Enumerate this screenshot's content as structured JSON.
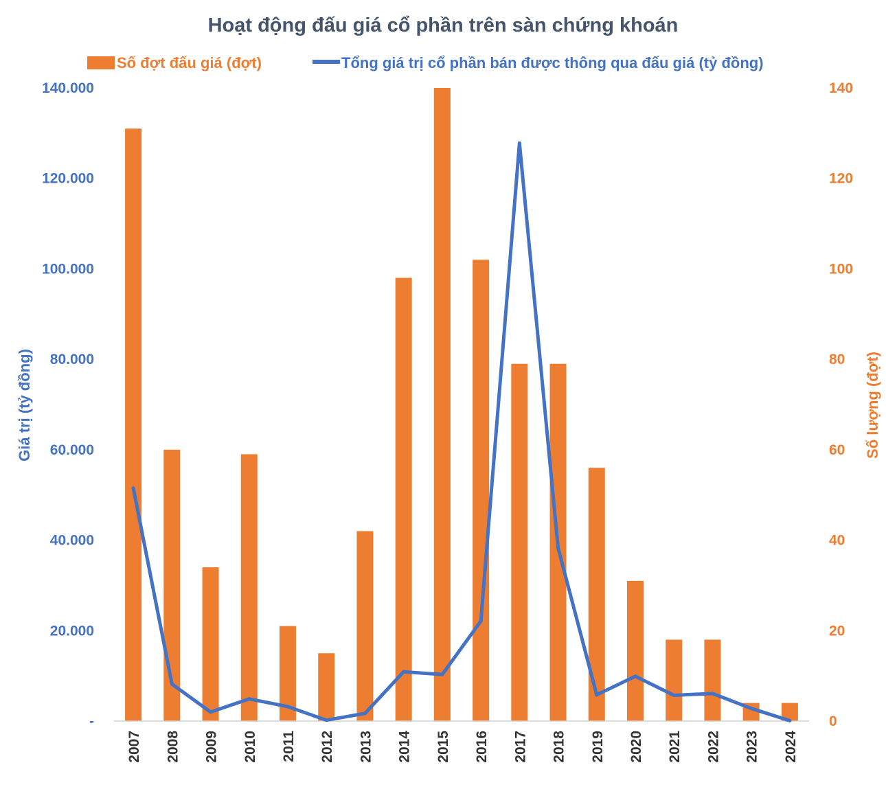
{
  "chart_data": {
    "type": "bar+line",
    "title": "Hoạt động đấu giá cổ phần trên sàn chứng khoán",
    "categories": [
      "2007",
      "2008",
      "2009",
      "2010",
      "2011",
      "2012",
      "2013",
      "2014",
      "2015",
      "2016",
      "2017",
      "2018",
      "2019",
      "2020",
      "2021",
      "2022",
      "2023",
      "2024"
    ],
    "series": [
      {
        "name": "Số đợt đấu giá (đợt)",
        "type": "bar",
        "axis": "right",
        "color": "#ed7d31",
        "values": [
          131,
          60,
          34,
          59,
          21,
          15,
          42,
          98,
          140,
          102,
          79,
          79,
          56,
          31,
          18,
          18,
          4,
          4
        ]
      },
      {
        "name": "Tổng giá trị cổ phần bán được thông qua đấu giá (tỷ đồng)",
        "type": "line",
        "axis": "left",
        "color": "#4472c4",
        "values": [
          51500,
          8200,
          2000,
          4900,
          3200,
          200,
          1700,
          10900,
          10300,
          22100,
          127800,
          38300,
          5800,
          9900,
          5700,
          6100,
          2800,
          100
        ]
      }
    ],
    "ylabel_left": "Giá trị (tỷ đồng)",
    "ylabel_right": "Số lượng (đợt)",
    "ylim_left": [
      0,
      140000
    ],
    "ylim_right": [
      0,
      140
    ],
    "yticks_left": [
      "-",
      "20.000",
      "40.000",
      "60.000",
      "80.000",
      "100.000",
      "120.000",
      "140.000"
    ],
    "yticks_right": [
      "0",
      "20",
      "40",
      "60",
      "80",
      "100",
      "120",
      "140"
    ],
    "legend_position": "top",
    "grid": false
  }
}
